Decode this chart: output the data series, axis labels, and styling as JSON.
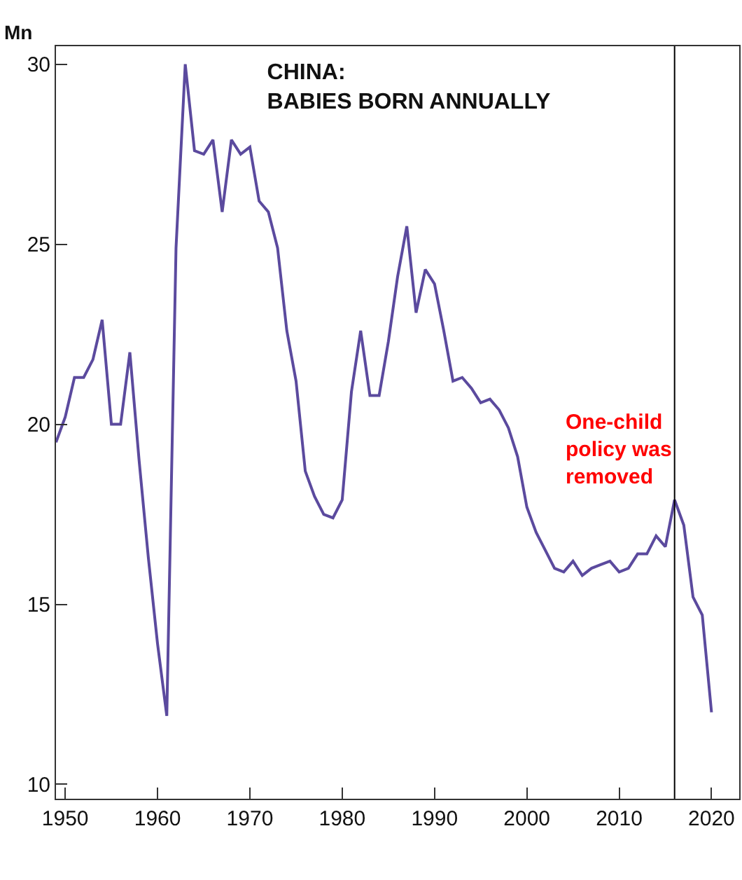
{
  "chart_data": {
    "type": "line",
    "title": "CHINA:\nBABIES BORN ANNUALLY",
    "ylabel": "Mn",
    "x": [
      1949,
      1950,
      1951,
      1952,
      1953,
      1954,
      1955,
      1956,
      1957,
      1958,
      1959,
      1960,
      1961,
      1962,
      1963,
      1964,
      1965,
      1966,
      1967,
      1968,
      1969,
      1970,
      1971,
      1972,
      1973,
      1974,
      1975,
      1976,
      1977,
      1978,
      1979,
      1980,
      1981,
      1982,
      1983,
      1984,
      1985,
      1986,
      1987,
      1988,
      1989,
      1990,
      1991,
      1992,
      1993,
      1994,
      1995,
      1996,
      1997,
      1998,
      1999,
      2000,
      2001,
      2002,
      2003,
      2004,
      2005,
      2006,
      2007,
      2008,
      2009,
      2010,
      2011,
      2012,
      2013,
      2014,
      2015,
      2016,
      2017,
      2018,
      2019,
      2020
    ],
    "series": [
      {
        "color": "#5b4a9e",
        "values": [
          19.5,
          20.2,
          21.3,
          21.3,
          21.8,
          22.9,
          20.0,
          20.0,
          22.0,
          19.0,
          16.3,
          13.9,
          11.9,
          24.9,
          30.0,
          27.6,
          27.5,
          27.9,
          25.9,
          27.9,
          27.5,
          27.7,
          26.2,
          25.9,
          24.9,
          22.6,
          21.2,
          18.7,
          18.0,
          17.5,
          17.4,
          17.9,
          20.9,
          22.6,
          20.8,
          20.8,
          22.3,
          24.1,
          25.5,
          23.1,
          24.3,
          23.9,
          22.6,
          21.2,
          21.3,
          21.0,
          20.6,
          20.7,
          20.4,
          19.9,
          19.1,
          17.7,
          17.0,
          16.5,
          16.0,
          15.9,
          16.2,
          15.8,
          16.0,
          16.1,
          16.2,
          15.9,
          16.0,
          16.4,
          16.4,
          16.9,
          16.6,
          17.9,
          17.2,
          15.2,
          14.7,
          12.0
        ]
      }
    ],
    "xlim": [
      1949,
      2023
    ],
    "xticks": [
      1950,
      1960,
      1970,
      1980,
      1990,
      2000,
      2010,
      2020
    ],
    "ylim": [
      9.6,
      30.5
    ],
    "yticks": [
      10,
      15,
      20,
      25,
      30
    ],
    "ref_lines": [
      {
        "axis": "x",
        "value": 2016,
        "color": "#000000"
      }
    ],
    "annotations": [
      "One-child\npolicy was\nremoved"
    ],
    "marker": "none",
    "line_style": "solid"
  }
}
